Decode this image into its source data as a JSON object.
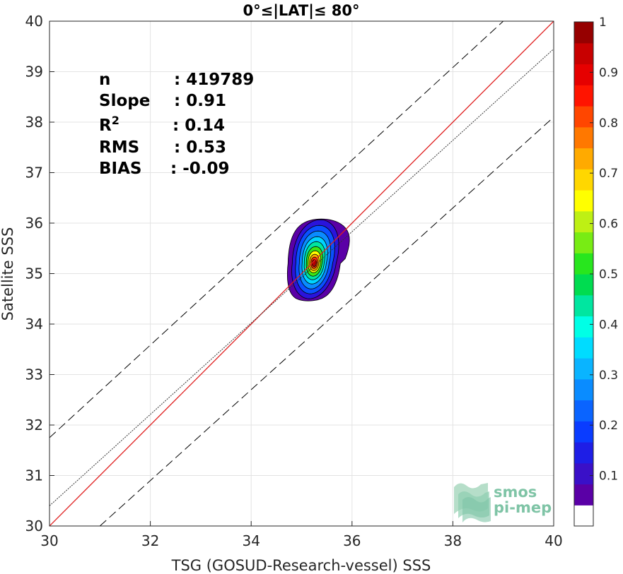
{
  "chart_data": {
    "type": "contour-scatter",
    "title": "0°≤|LAT|≤ 80°",
    "xlabel": "TSG (GOSUD-Research-vessel) SSS",
    "ylabel": "Satellite SSS",
    "xlim": [
      30,
      40
    ],
    "ylim": [
      30,
      40
    ],
    "xticks": [
      "30",
      "32",
      "34",
      "36",
      "38",
      "40"
    ],
    "yticks": [
      "30",
      "31",
      "32",
      "33",
      "34",
      "35",
      "36",
      "37",
      "38",
      "39",
      "40"
    ],
    "grid": true,
    "stats": [
      {
        "label": "n",
        "value": ": 419789"
      },
      {
        "label": "Slope",
        "value": ": 0.91"
      },
      {
        "label": "R",
        "sup": "2",
        "value": ": 0.14"
      },
      {
        "label": "RMS",
        "value": ": 0.53"
      },
      {
        "label": "BIAS",
        "value": ": -0.09"
      }
    ],
    "lines": [
      {
        "kind": "one-to-one",
        "color": "#e02020",
        "x": [
          30,
          40
        ],
        "y": [
          30,
          40
        ]
      },
      {
        "kind": "regression",
        "color": "#333333",
        "x": [
          30,
          40
        ],
        "y": [
          30.4,
          39.45
        ]
      },
      {
        "kind": "upper-bound",
        "color": "#000000",
        "x": [
          30,
          39.0
        ],
        "y": [
          31.75,
          40
        ]
      },
      {
        "kind": "lower-bound",
        "color": "#000000",
        "x": [
          31.0,
          40
        ],
        "y": [
          30,
          38.1
        ]
      }
    ],
    "density_center": {
      "x": 35.25,
      "y": 35.2
    },
    "colorbar": {
      "range": [
        0,
        1
      ],
      "ticks": [
        "0.1",
        "0.2",
        "0.3",
        "0.4",
        "0.5",
        "0.6",
        "0.7",
        "0.8",
        "0.9",
        "1"
      ],
      "colors": [
        "#ffffff",
        "#5a00a6",
        "#3a10c8",
        "#1e1ee6",
        "#0a3cff",
        "#0a64ff",
        "#0a8cff",
        "#0ab4ff",
        "#00dcff",
        "#00ffe6",
        "#00e6a0",
        "#00dc50",
        "#28e61e",
        "#78ec14",
        "#bef014",
        "#ffff00",
        "#ffd700",
        "#ffaa00",
        "#ff7800",
        "#ff4600",
        "#ff1400",
        "#e60000",
        "#c80000",
        "#960000"
      ]
    }
  },
  "logo": {
    "line1": "smos",
    "line2": "pi-mep"
  }
}
